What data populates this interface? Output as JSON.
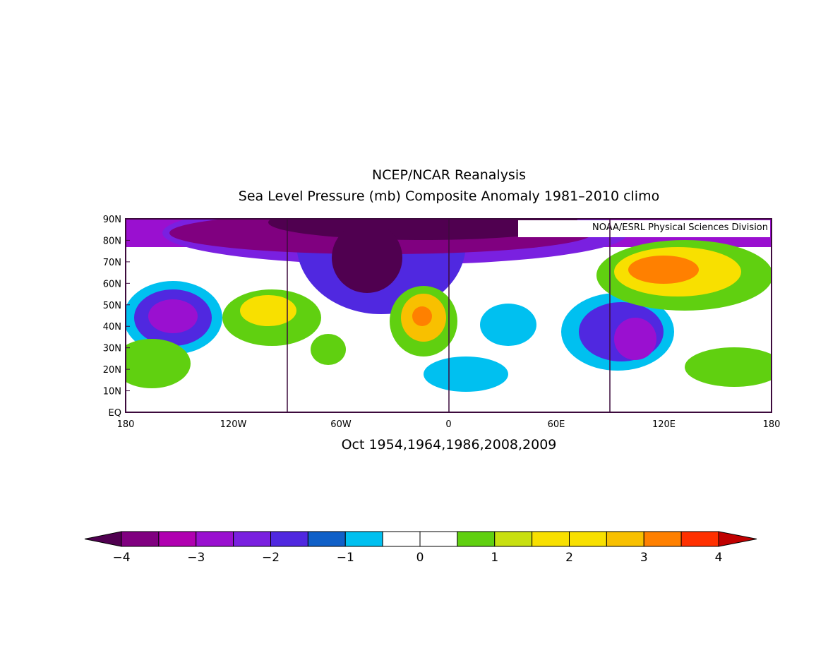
{
  "title": "NCEP/NCAR Reanalysis",
  "subtitle": "Sea Level Pressure (mb) Composite Anomaly 1981–2010 climo",
  "credit": "NOAA/ESRL Physical Sciences Division",
  "caption": "Oct 1954,1964,1986,2008,2009",
  "map": {
    "lat_labels": [
      "EQ",
      "10N",
      "20N",
      "30N",
      "40N",
      "50N",
      "60N",
      "70N",
      "80N",
      "90N"
    ],
    "lon_labels": [
      "180",
      "120W",
      "60W",
      "0",
      "60E",
      "120E",
      "180"
    ]
  },
  "colorbar": {
    "low_color": "#500050",
    "high_color": "#c00000",
    "colors": [
      "#800080",
      "#b000b0",
      "#9a10d0",
      "#7a20e0",
      "#5028e0",
      "#1060c8",
      "#00c0f0",
      "#ffffff",
      "#ffffff",
      "#60d010",
      "#c8e010",
      "#f8e000",
      "#f8e000",
      "#f8c000",
      "#ff8000",
      "#ff3000"
    ],
    "ticks": [
      {
        "value": -4,
        "label": "−4"
      },
      {
        "value": -3,
        "label": "−3"
      },
      {
        "value": -2,
        "label": "−2"
      },
      {
        "value": -1,
        "label": "−1"
      },
      0,
      1,
      2,
      3,
      4
    ]
  }
}
